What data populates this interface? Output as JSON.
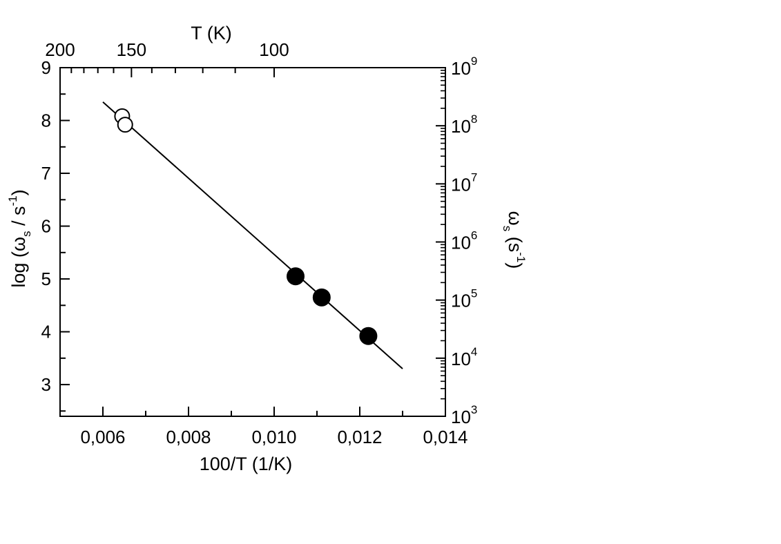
{
  "chart_data": {
    "type": "scatter",
    "xlabel": "100/T   (1/K)",
    "ylabel_left": {
      "main": "log (ω",
      "sub": "s",
      "mid": " / s",
      "sup": "-1",
      "end": ")"
    },
    "ylabel_right": {
      "main": "ω",
      "sub": "s",
      "mid": "  (s",
      "sup": "-1",
      "end": ")"
    },
    "top_axis_label": "T (K)",
    "xlim": [
      0.005,
      0.014
    ],
    "ylim": [
      2.4,
      9
    ],
    "x_ticks": [
      0.006,
      0.008,
      0.01,
      0.012,
      0.014
    ],
    "x_tick_labels": [
      "0,006",
      "0,008",
      "0,010",
      "0,012",
      "0,014"
    ],
    "y_ticks": [
      3,
      4,
      5,
      6,
      7,
      8,
      9
    ],
    "y_tick_labels": [
      "3",
      "4",
      "5",
      "6",
      "7",
      "8",
      "9"
    ],
    "right_ticks": [
      {
        "y": 2.4,
        "base": "10",
        "exp": "3"
      },
      {
        "y": 3.5,
        "base": "10",
        "exp": "4"
      },
      {
        "y": 4.6,
        "base": "10",
        "exp": "5"
      },
      {
        "y": 5.7,
        "base": "10",
        "exp": "6"
      },
      {
        "y": 6.8,
        "base": "10",
        "exp": "7"
      },
      {
        "y": 7.9,
        "base": "10",
        "exp": "8"
      },
      {
        "y": 9.0,
        "base": "10",
        "exp": "9"
      }
    ],
    "top_ticks": [
      {
        "x": 0.005,
        "label": "200"
      },
      {
        "x": 0.006667,
        "label": "150"
      },
      {
        "x": 0.01,
        "label": "100"
      }
    ],
    "series": [
      {
        "marker": "open-circle",
        "x": [
          0.00645,
          0.00652
        ],
        "y": [
          8.08,
          7.92
        ]
      },
      {
        "marker": "filled-circle",
        "x": [
          0.0105,
          0.01111,
          0.0122
        ],
        "y": [
          5.05,
          4.65,
          3.92
        ]
      }
    ],
    "fit_line": {
      "x": [
        0.006,
        0.013
      ],
      "y": [
        8.35,
        3.3
      ]
    },
    "grid": false
  }
}
